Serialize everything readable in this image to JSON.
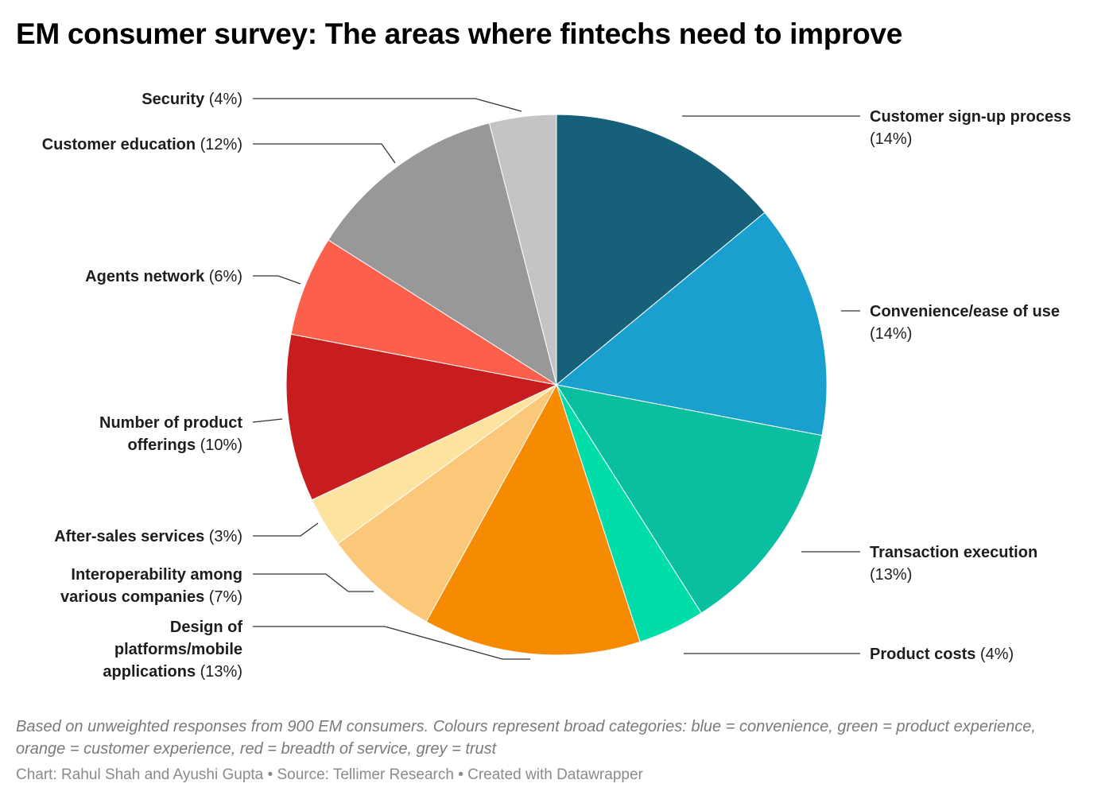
{
  "title": "EM consumer survey: The areas where fintechs need to improve",
  "note": "Based on unweighted responses from 900 EM consumers. Colours represent broad categories: blue = convenience, green = product experience, orange = customer experience, red = breadth of service, grey = trust",
  "source": "Chart: Rahul Shah and Ayushi Gupta • Source: Tellimer Research • Created with Datawrapper",
  "chart_data": {
    "type": "pie",
    "title": "EM consumer survey: The areas where fintechs need to improve",
    "unit": "%",
    "slices": [
      {
        "label": "Customer sign-up process",
        "value": 14,
        "pct_text": "(14%)",
        "color": "#17607a"
      },
      {
        "label": "Convenience/ease of use",
        "value": 14,
        "pct_text": "(14%)",
        "color": "#1aa0cf"
      },
      {
        "label": "Transaction execution",
        "value": 13,
        "pct_text": "(13%)",
        "color": "#0abea0"
      },
      {
        "label": "Product costs",
        "value": 4,
        "pct_text": "(4%)",
        "color": "#00dda8"
      },
      {
        "label": "Design of platforms/mobile applications",
        "value": 13,
        "pct_text": "(13%)",
        "color": "#f68a00"
      },
      {
        "label": "Interoperability among various companies",
        "value": 7,
        "pct_text": "(7%)",
        "color": "#fbc879"
      },
      {
        "label": "After-sales services",
        "value": 3,
        "pct_text": "(3%)",
        "color": "#fde3a0"
      },
      {
        "label": "Number of product offerings",
        "value": 10,
        "pct_text": "(10%)",
        "color": "#c71d1f"
      },
      {
        "label": "Agents network",
        "value": 6,
        "pct_text": "(6%)",
        "color": "#fd5f4d"
      },
      {
        "label": "Customer education",
        "value": 12,
        "pct_text": "(12%)",
        "color": "#989898"
      },
      {
        "label": "Security",
        "value": 4,
        "pct_text": "(4%)",
        "color": "#c4c4c4"
      }
    ]
  }
}
